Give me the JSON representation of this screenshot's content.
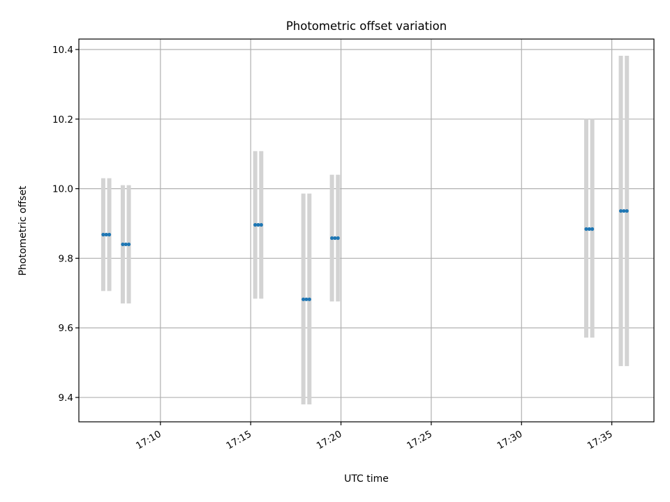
{
  "chart_data": {
    "type": "scatter",
    "title": "Photometric offset variation",
    "xlabel": "UTC time",
    "ylabel": "Photometric offset",
    "x_ticks": [
      "17:10",
      "17:15",
      "17:20",
      "17:25",
      "17:30",
      "17:35"
    ],
    "y_ticks": [
      "9.4",
      "9.6",
      "9.8",
      "10.0",
      "10.2",
      "10.4"
    ],
    "xlim": [
      "17:05:29",
      "17:37:20"
    ],
    "ylim": [
      9.33,
      10.43
    ],
    "grid": true,
    "colors": {
      "marker": "#1f77b4",
      "errorbar": "#d3d3d3"
    },
    "points": [
      {
        "x_start": "17:06:50",
        "x_end": "17:07:10",
        "y": 9.868,
        "ymin": 9.706,
        "ymax": 10.03
      },
      {
        "x_start": "17:07:55",
        "x_end": "17:08:15",
        "y": 9.84,
        "ymin": 9.67,
        "ymax": 10.01
      },
      {
        "x_start": "17:15:15",
        "x_end": "17:15:35",
        "y": 9.896,
        "ymin": 9.684,
        "ymax": 10.108
      },
      {
        "x_start": "17:17:55",
        "x_end": "17:18:15",
        "y": 9.682,
        "ymin": 9.38,
        "ymax": 9.986
      },
      {
        "x_start": "17:19:30",
        "x_end": "17:19:50",
        "y": 9.858,
        "ymin": 9.676,
        "ymax": 10.04
      },
      {
        "x_start": "17:33:35",
        "x_end": "17:33:55",
        "y": 9.884,
        "ymin": 9.572,
        "ymax": 10.2
      },
      {
        "x_start": "17:35:30",
        "x_end": "17:35:50",
        "y": 9.936,
        "ymin": 9.49,
        "ymax": 10.382
      }
    ]
  }
}
